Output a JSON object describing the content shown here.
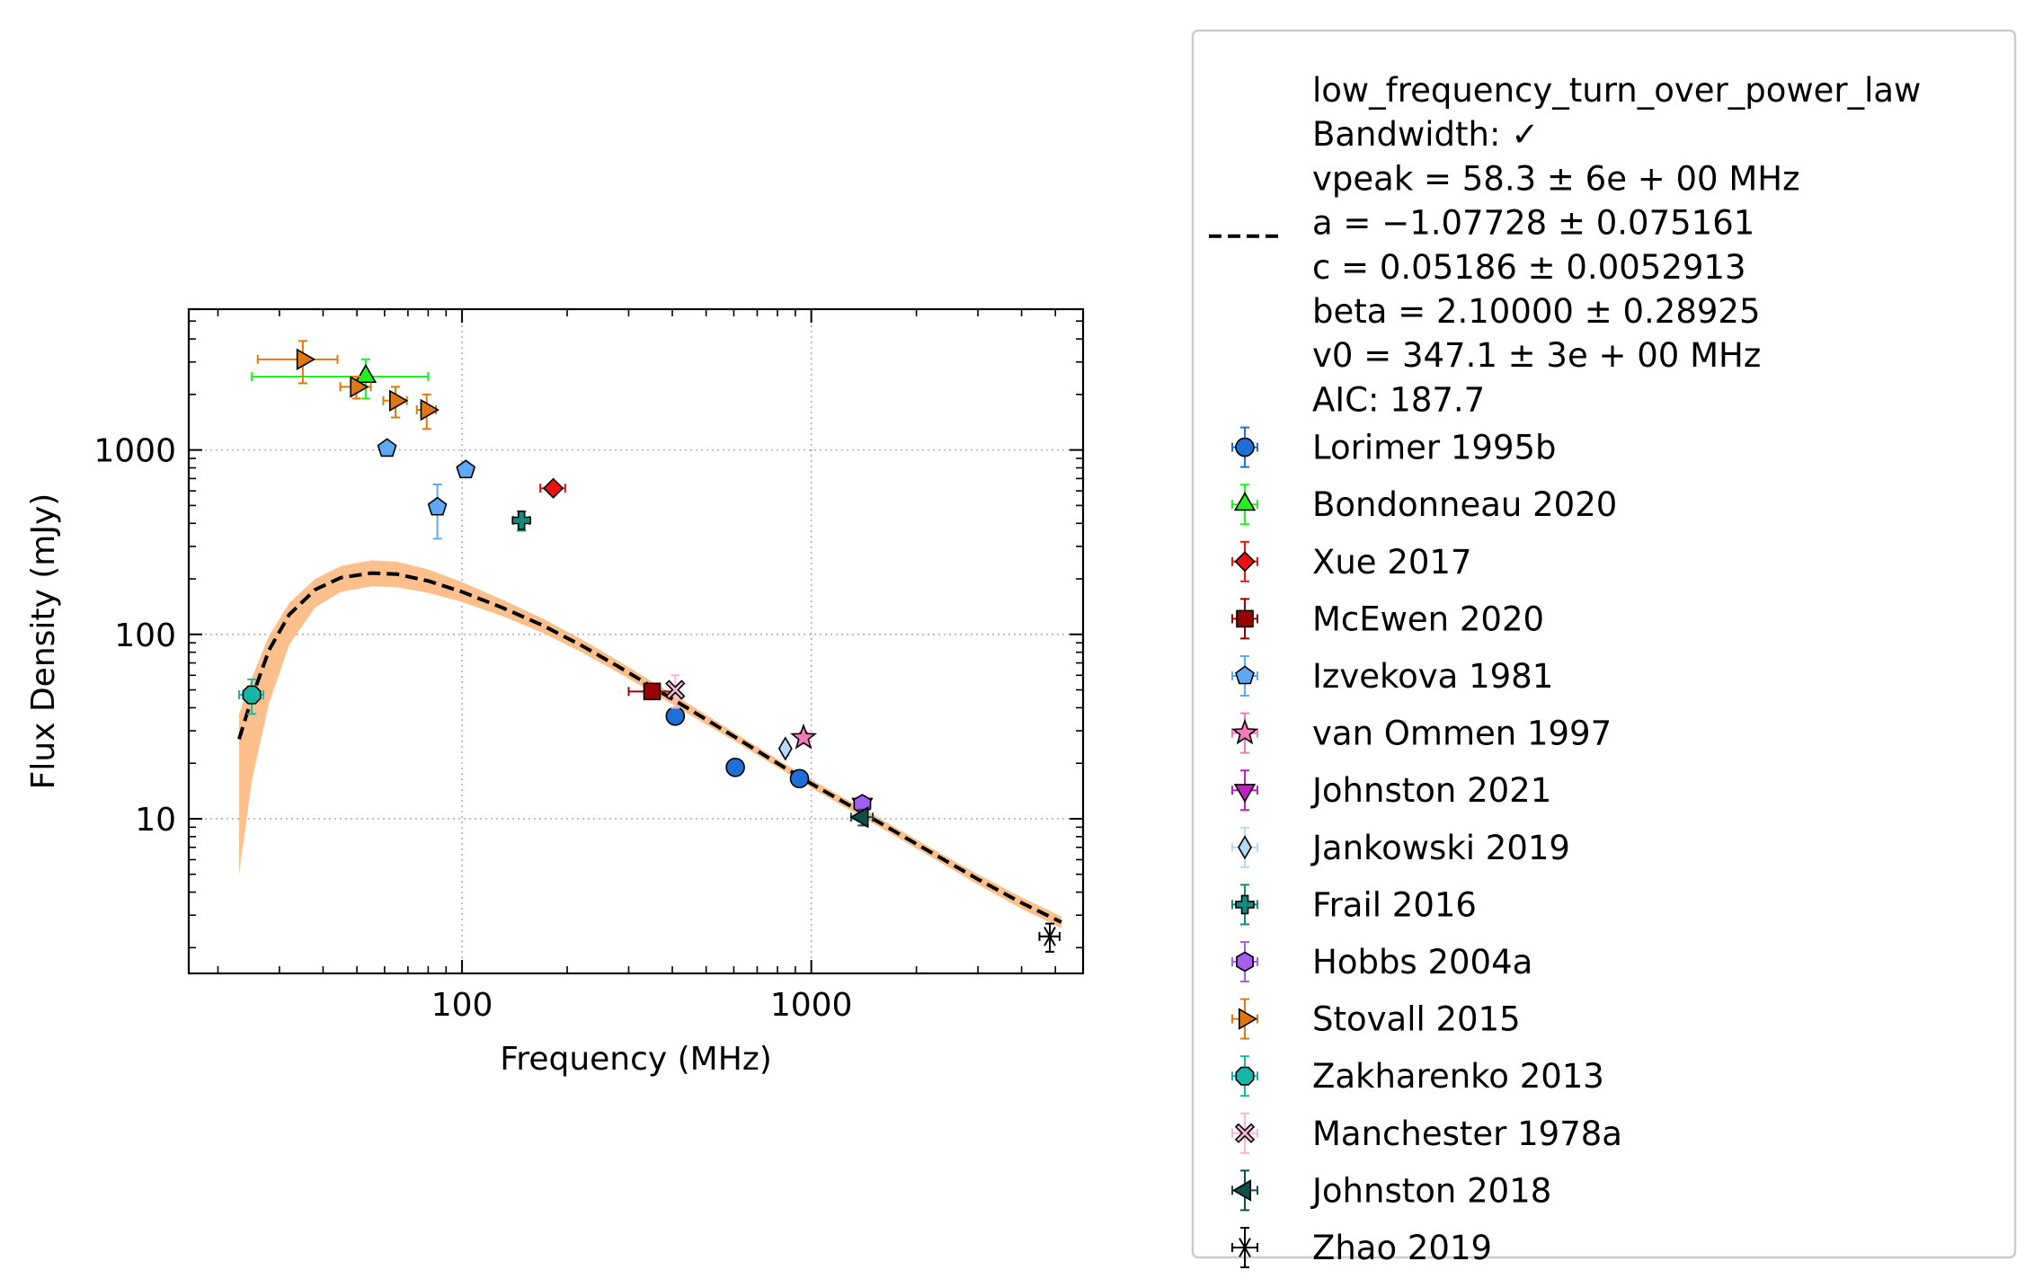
{
  "chart_data": {
    "type": "scatter",
    "xlabel": "Frequency (MHz)",
    "ylabel": "Flux Density (mJy)",
    "xscale": "log",
    "yscale": "log",
    "xlim": [
      16.5,
      6000
    ],
    "ylim": [
      1.45,
      5800
    ],
    "xticks": [
      {
        "v": 100,
        "label": "100"
      },
      {
        "v": 1000,
        "label": "1000"
      }
    ],
    "yticks": [
      {
        "v": 10,
        "label": "10"
      },
      {
        "v": 100,
        "label": "100"
      },
      {
        "v": 1000,
        "label": "1000"
      }
    ],
    "grid": true,
    "legend_position": "outside-right",
    "fit": {
      "legend_lines": [
        "low_frequency_turn_over_power_law",
        "Bandwidth: ✓",
        "vpeak = 58.3 ± 6e + 00 MHz",
        "a = −1.07728 ± 0.075161",
        "c = 0.05186 ± 0.0052913",
        "beta = 2.10000 ± 0.28925",
        "v0 = 347.1 ± 3e + 00 MHz",
        "AIC: 187.7"
      ],
      "line_color": "#000000",
      "band_color": "#fdc08d",
      "curve": [
        [
          23,
          27
        ],
        [
          25,
          45
        ],
        [
          28,
          82
        ],
        [
          32,
          128
        ],
        [
          38,
          175
        ],
        [
          45,
          203
        ],
        [
          55,
          215
        ],
        [
          65,
          212
        ],
        [
          80,
          195
        ],
        [
          100,
          170
        ],
        [
          130,
          140
        ],
        [
          170,
          112
        ],
        [
          220,
          87
        ],
        [
          280,
          67
        ],
        [
          350,
          52
        ],
        [
          450,
          39
        ],
        [
          600,
          28
        ],
        [
          800,
          20
        ],
        [
          1000,
          15.5
        ],
        [
          1400,
          10.8
        ],
        [
          2000,
          7.3
        ],
        [
          3000,
          4.7
        ],
        [
          4000,
          3.5
        ],
        [
          5200,
          2.75
        ]
      ],
      "band_upper": [
        [
          23,
          37
        ],
        [
          25,
          58
        ],
        [
          28,
          98
        ],
        [
          32,
          148
        ],
        [
          38,
          200
        ],
        [
          45,
          235
        ],
        [
          55,
          252
        ],
        [
          65,
          248
        ],
        [
          80,
          225
        ],
        [
          100,
          192
        ],
        [
          130,
          155
        ],
        [
          170,
          122
        ],
        [
          220,
          94
        ],
        [
          280,
          72
        ],
        [
          350,
          55.5
        ],
        [
          450,
          41.5
        ],
        [
          600,
          29.5
        ],
        [
          800,
          21
        ],
        [
          1000,
          16.3
        ],
        [
          1400,
          11.4
        ],
        [
          2000,
          7.7
        ],
        [
          3000,
          5.0
        ],
        [
          4000,
          3.75
        ],
        [
          5200,
          2.95
        ]
      ],
      "band_lower": [
        [
          23,
          5
        ],
        [
          25,
          16
        ],
        [
          28,
          42
        ],
        [
          32,
          88
        ],
        [
          38,
          140
        ],
        [
          45,
          170
        ],
        [
          55,
          182
        ],
        [
          65,
          180
        ],
        [
          80,
          168
        ],
        [
          100,
          150
        ],
        [
          130,
          126
        ],
        [
          170,
          102
        ],
        [
          220,
          80
        ],
        [
          280,
          62
        ],
        [
          350,
          48.5
        ],
        [
          450,
          36.5
        ],
        [
          600,
          26.5
        ],
        [
          800,
          19
        ],
        [
          1000,
          14.7
        ],
        [
          1400,
          10.2
        ],
        [
          2000,
          6.9
        ],
        [
          3000,
          4.4
        ],
        [
          4000,
          3.25
        ],
        [
          5200,
          2.55
        ]
      ]
    },
    "series": [
      {
        "name": "Lorimer 1995b",
        "marker": "circle",
        "color": "#1f6fd9",
        "points": [
          {
            "x": 408,
            "y": 36,
            "yerr": [
              2,
              2
            ]
          },
          {
            "x": 606,
            "y": 19,
            "yerr": [
              1,
              1
            ]
          },
          {
            "x": 925,
            "y": 16.5,
            "yerr": [
              1,
              1
            ]
          }
        ]
      },
      {
        "name": "Bondonneau 2020",
        "marker": "triangle-up",
        "color": "#22ee22",
        "points": [
          {
            "x": 53,
            "y": 2500,
            "xerr": [
              28,
              27
            ],
            "yerr": [
              600,
              600
            ]
          }
        ]
      },
      {
        "name": "Xue 2017",
        "marker": "diamond",
        "color": "#ee1111",
        "points": [
          {
            "x": 182.5,
            "y": 620,
            "xerr": [
              15,
              15
            ],
            "yerr": [
              30,
              30
            ]
          }
        ]
      },
      {
        "name": "McEwen 2020",
        "marker": "square",
        "color": "#990000",
        "points": [
          {
            "x": 350,
            "y": 49,
            "xerr": [
              50,
              50
            ],
            "yerr": [
              3,
              3
            ]
          }
        ]
      },
      {
        "name": "Izvekova 1981",
        "marker": "pentagon",
        "color": "#5fa8f5",
        "points": [
          {
            "x": 61,
            "y": 1020,
            "yerr": [
              50,
              50
            ]
          },
          {
            "x": 85,
            "y": 490,
            "yerr": [
              160,
              160
            ]
          },
          {
            "x": 102.5,
            "y": 780,
            "yerr": [
              40,
              40
            ]
          }
        ]
      },
      {
        "name": "van Ommen 1997",
        "marker": "star",
        "color": "#f27ab8",
        "points": [
          {
            "x": 950,
            "y": 27.5,
            "yerr": [
              2,
              2
            ]
          }
        ]
      },
      {
        "name": "Johnston 2021",
        "marker": "triangle-down",
        "color": "#bb22bb",
        "points": [
          {
            "x": 1400,
            "y": 12,
            "yerr": [
              1,
              1
            ]
          }
        ]
      },
      {
        "name": "Jankowski 2019",
        "marker": "thin-diamond",
        "color": "#b8d8f8",
        "points": [
          {
            "x": 843,
            "y": 24,
            "yerr": [
              2,
              2
            ]
          }
        ]
      },
      {
        "name": "Frail 2016",
        "marker": "plus",
        "color": "#138a80",
        "points": [
          {
            "x": 148,
            "y": 415,
            "xerr": [
              8,
              8
            ],
            "yerr": [
              50,
              50
            ]
          }
        ]
      },
      {
        "name": "Hobbs 2004a",
        "marker": "hexagon",
        "color": "#a55ef0",
        "points": [
          {
            "x": 1400,
            "y": 12,
            "yerr": [
              1,
              1
            ]
          }
        ]
      },
      {
        "name": "Stovall 2015",
        "marker": "triangle-right",
        "color": "#e07810",
        "points": [
          {
            "x": 35,
            "y": 3100,
            "xerr": [
              9,
              9
            ],
            "yerr": [
              800,
              800
            ]
          },
          {
            "x": 49.8,
            "y": 2200,
            "xerr": [
              5,
              5
            ],
            "yerr": [
              300,
              300
            ]
          },
          {
            "x": 64.5,
            "y": 1850,
            "xerr": [
              5,
              5
            ],
            "yerr": [
              350,
              350
            ]
          },
          {
            "x": 79.2,
            "y": 1650,
            "xerr": [
              5,
              5
            ],
            "yerr": [
              350,
              350
            ]
          }
        ]
      },
      {
        "name": "Zakharenko 2013",
        "marker": "octagon",
        "color": "#15b8a8",
        "points": [
          {
            "x": 25,
            "y": 47,
            "xerr": [
              2,
              2
            ],
            "yerr": [
              10,
              10
            ]
          }
        ]
      },
      {
        "name": "Manchester 1978a",
        "marker": "x-filled",
        "color": "#f7b6d2",
        "points": [
          {
            "x": 408,
            "y": 50,
            "yerr": [
              10,
              10
            ]
          }
        ]
      },
      {
        "name": "Johnston 2018",
        "marker": "triangle-left",
        "color": "#0d4f4a",
        "points": [
          {
            "x": 1400,
            "y": 10.2,
            "xerr": [
              100,
              100
            ],
            "yerr": [
              1,
              1
            ]
          }
        ]
      },
      {
        "name": "Zhao 2019",
        "marker": "asterisk",
        "color": "#000000",
        "points": [
          {
            "x": 4820,
            "y": 2.3,
            "xerr": [
              320,
              320
            ],
            "yerr": [
              0.4,
              0.4
            ]
          }
        ]
      }
    ]
  }
}
